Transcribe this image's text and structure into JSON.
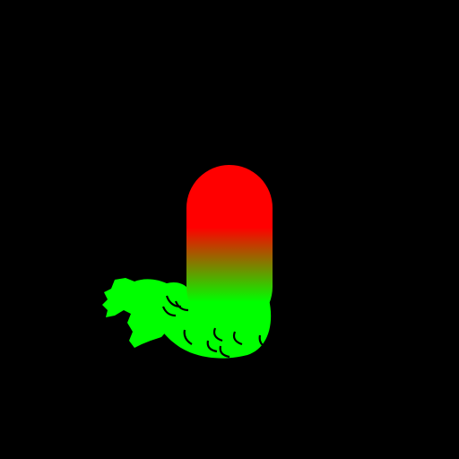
{
  "figure": {
    "subject": "mermaid-tail-icon",
    "colors": {
      "background": "#000000",
      "body_top": "#FF0000",
      "body_mid": "#FF0000",
      "body_bottom": "#00FF00",
      "tail": "#00FF00",
      "scale_stroke": "#000000"
    }
  }
}
